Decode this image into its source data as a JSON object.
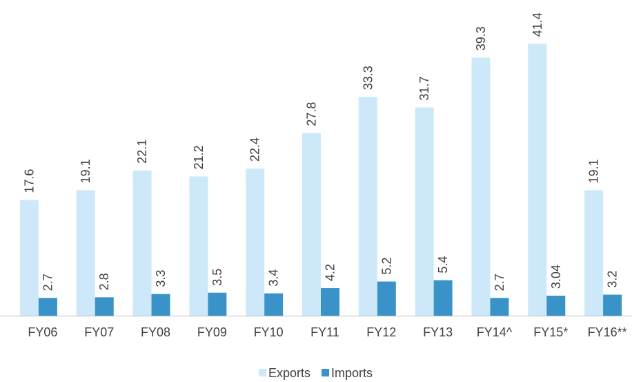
{
  "chart_data": {
    "type": "bar",
    "categories": [
      "FY06",
      "FY07",
      "FY08",
      "FY09",
      "FY10",
      "FY11",
      "FY12",
      "FY13",
      "FY14^",
      "FY15*",
      "FY16**"
    ],
    "series": [
      {
        "name": "Exports",
        "color": "#cde9f9",
        "values": [
          17.6,
          19.1,
          22.1,
          21.2,
          22.4,
          27.8,
          33.3,
          31.7,
          39.3,
          41.4,
          19.1
        ]
      },
      {
        "name": "Imports",
        "color": "#3a93c8",
        "values": [
          2.7,
          2.8,
          3.3,
          3.5,
          3.4,
          4.2,
          5.2,
          5.4,
          2.7,
          3.04,
          3.2
        ]
      }
    ],
    "ylim": [
      0,
      45
    ],
    "legend": "bottom"
  }
}
